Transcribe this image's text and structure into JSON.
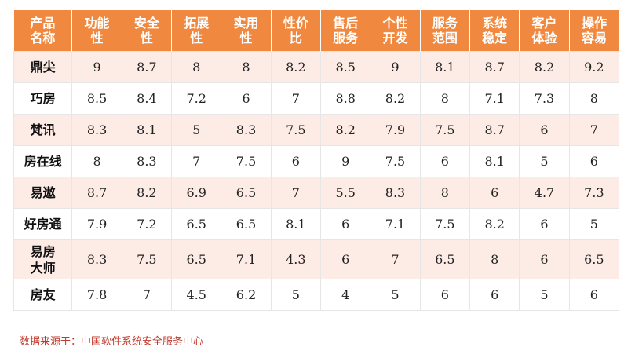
{
  "chart_data": {
    "type": "table",
    "columns": [
      "产品\n名称",
      "功能\n性",
      "安全\n性",
      "拓展\n性",
      "实用\n性",
      "性价\n比",
      "售后\n服务",
      "个性\n开发",
      "服务\n范围",
      "系统\n稳定",
      "客户\n体验",
      "操作\n容易"
    ],
    "rows": [
      [
        "鼎尖",
        "9",
        "8.7",
        "8",
        "8",
        "8.2",
        "8.5",
        "9",
        "8.1",
        "8.7",
        "8.2",
        "9.2"
      ],
      [
        "巧房",
        "8.5",
        "8.4",
        "7.2",
        "6",
        "7",
        "8.8",
        "8.2",
        "8",
        "7.1",
        "7.3",
        "8"
      ],
      [
        "梵讯",
        "8.3",
        "8.1",
        "5",
        "8.3",
        "7.5",
        "8.2",
        "7.9",
        "7.5",
        "8.7",
        "6",
        "7"
      ],
      [
        "房在线",
        "8",
        "8.3",
        "7",
        "7.5",
        "6",
        "9",
        "7.5",
        "6",
        "8.1",
        "5",
        "6"
      ],
      [
        "易遨",
        "8.7",
        "8.2",
        "6.9",
        "6.5",
        "7",
        "5.5",
        "8.3",
        "8",
        "6",
        "4.7",
        "7.3"
      ],
      [
        "好房通",
        "7.9",
        "7.2",
        "6.5",
        "6.5",
        "8.1",
        "6",
        "7.1",
        "7.5",
        "8.2",
        "6",
        "5"
      ],
      [
        "易房\n大师",
        "8.3",
        "7.5",
        "6.5",
        "7.1",
        "4.3",
        "6",
        "7",
        "6.5",
        "8",
        "6",
        "6.5"
      ],
      [
        "房友",
        "7.8",
        "7",
        "4.5",
        "6.2",
        "5",
        "4",
        "5",
        "6",
        "6",
        "5",
        "6"
      ]
    ],
    "header_color": "#f0893f",
    "alt_row_color": "#fdebe5"
  },
  "source": "数据来源于：中国软件系统安全服务中心",
  "source_color": "#c0392b"
}
